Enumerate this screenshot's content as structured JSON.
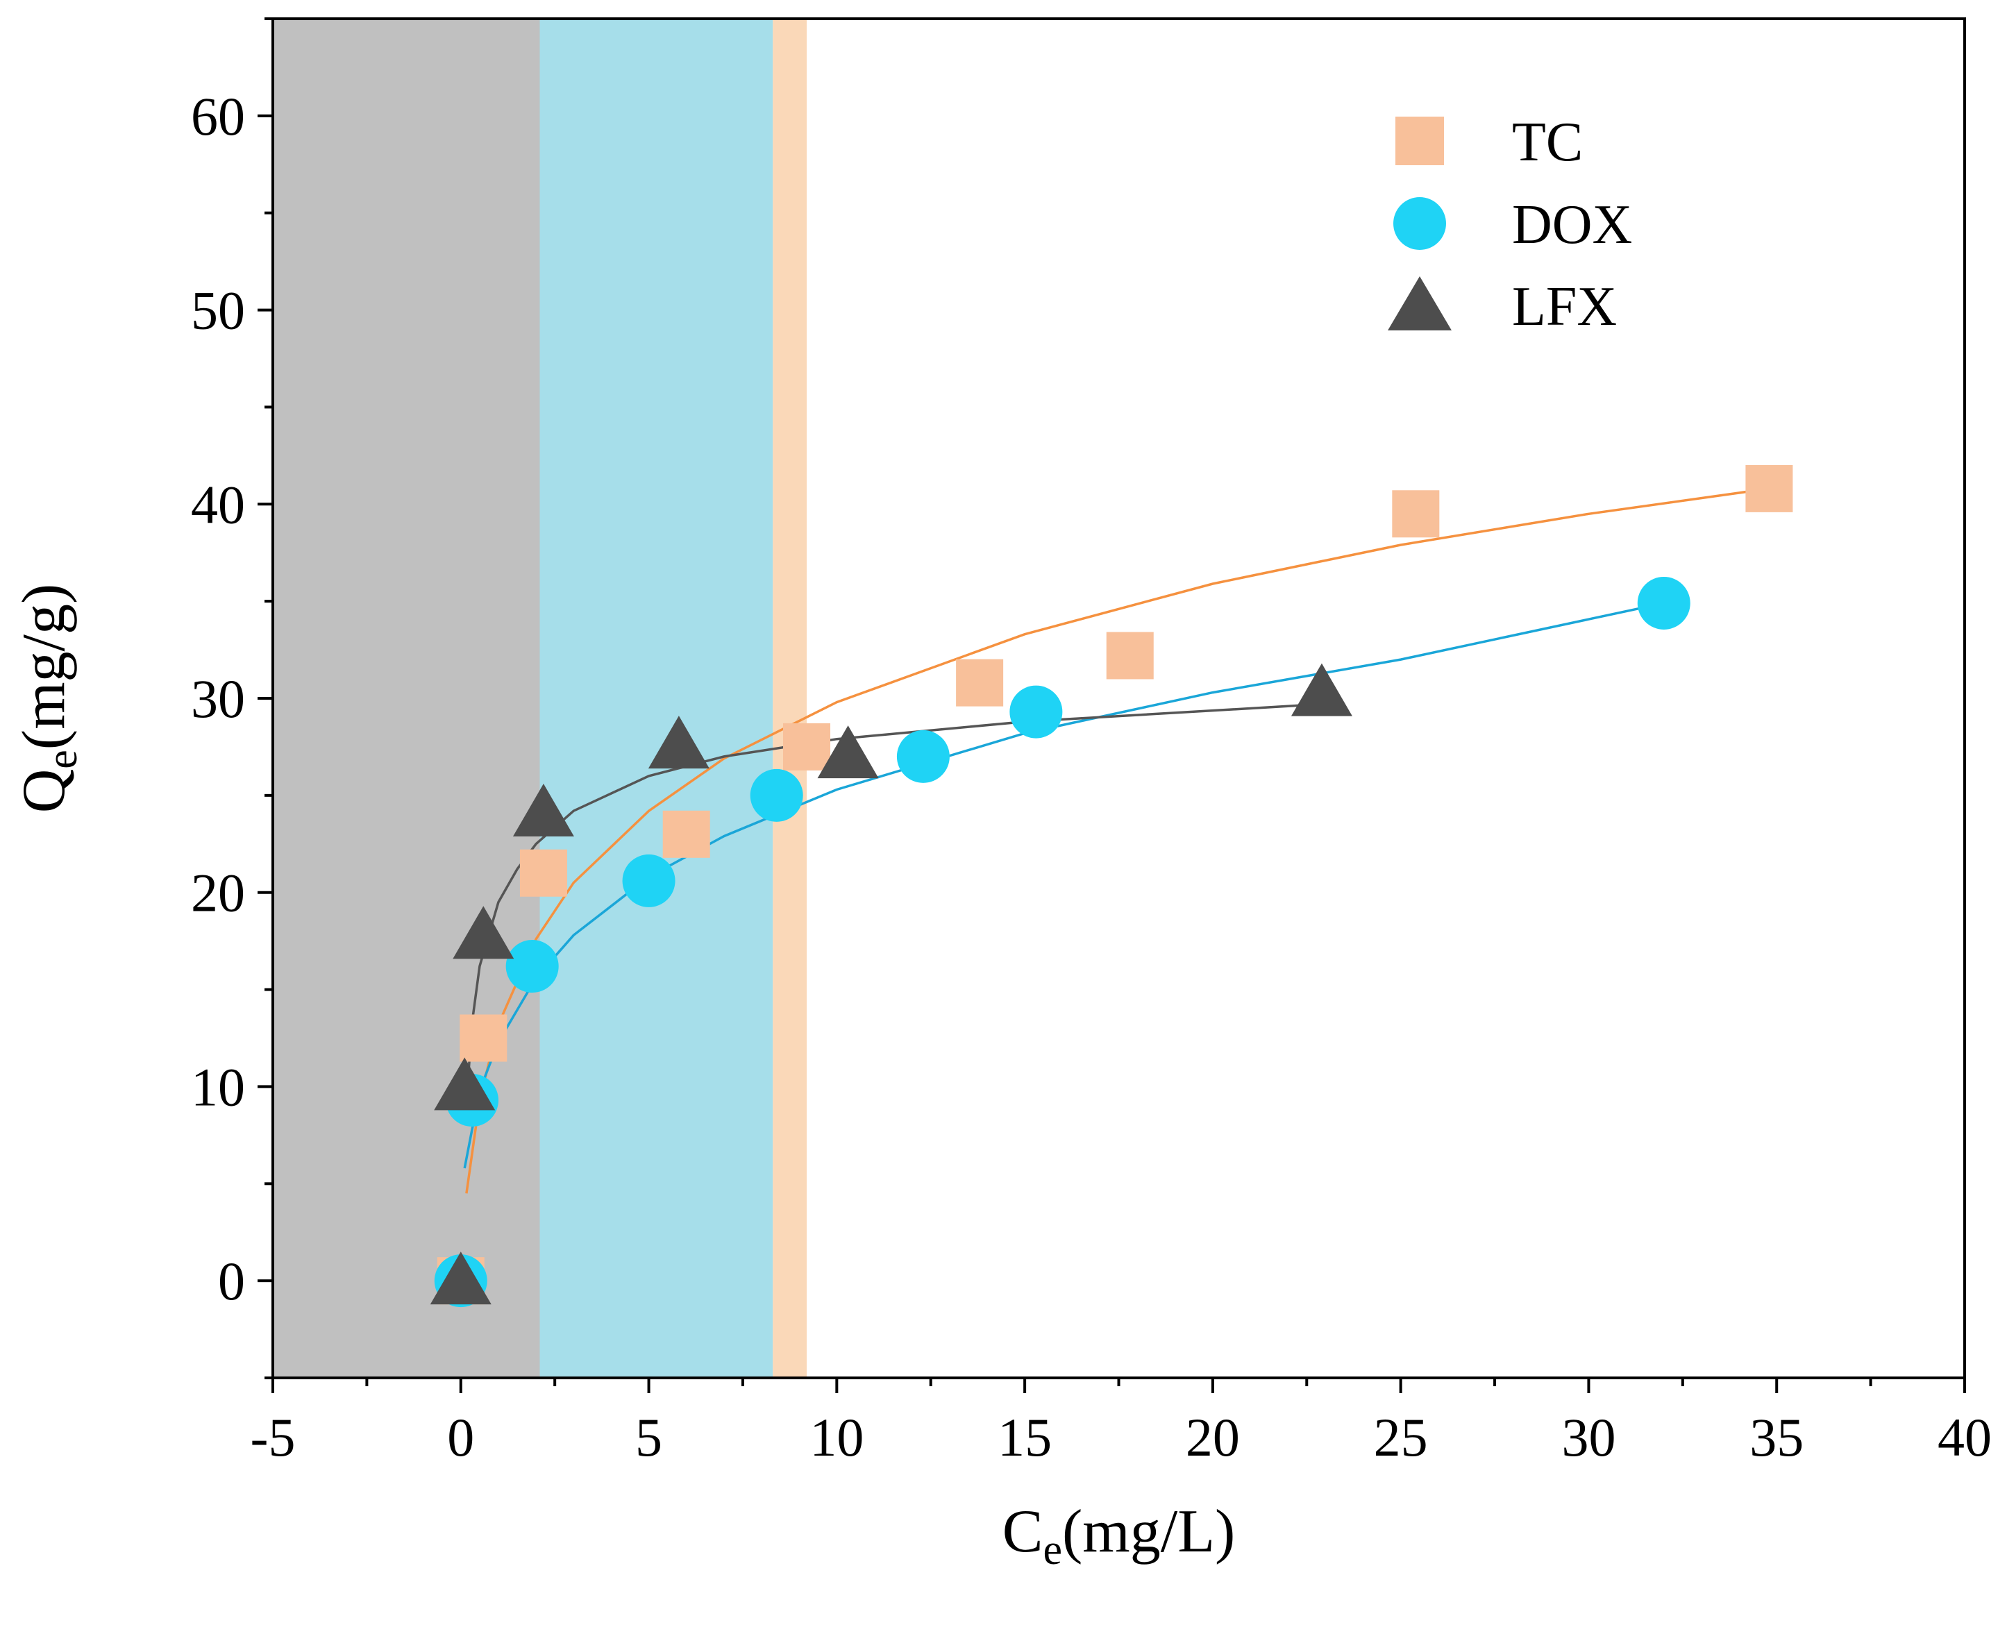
{
  "chart_data": {
    "type": "scatter",
    "title": "",
    "xlabel": {
      "main": "C",
      "sub": "e",
      "unit": "(mg/L)"
    },
    "ylabel": {
      "main": "Q",
      "sub": "e",
      "unit": "(mg/g)"
    },
    "xlim": [
      -5,
      40
    ],
    "ylim": [
      -5,
      65
    ],
    "x_ticks": [
      -5,
      0,
      5,
      10,
      15,
      20,
      25,
      30,
      35,
      40
    ],
    "x_tick_labels": [
      "-5",
      "0",
      "5",
      "10",
      "15",
      "20",
      "25",
      "30",
      "35",
      "40"
    ],
    "y_ticks": [
      0,
      10,
      20,
      30,
      40,
      50,
      60
    ],
    "y_tick_labels": [
      "0",
      "10",
      "20",
      "30",
      "40",
      "50",
      "60"
    ],
    "grid": false,
    "legend_position": "top-right",
    "shaded_regions": [
      {
        "x0": -5,
        "x1": 2.1,
        "color": "#c0c0c0"
      },
      {
        "x0": 2.1,
        "x1": 8.3,
        "color": "#a6deea"
      },
      {
        "x0": 8.3,
        "x1": 9.2,
        "color": "#fad8b8"
      }
    ],
    "series": [
      {
        "name": "TC",
        "marker": "square",
        "color": "#f8c09a",
        "fit_color": "#f5913f",
        "x": [
          0.0,
          0.6,
          2.2,
          6.0,
          9.2,
          13.8,
          17.8,
          25.4,
          34.8
        ],
        "y": [
          0.0,
          12.5,
          21.0,
          23.0,
          27.5,
          30.8,
          32.2,
          39.5,
          40.8
        ],
        "fit": [
          [
            0.15,
            4.5
          ],
          [
            0.5,
            9.3
          ],
          [
            1,
            13.2
          ],
          [
            2,
            17.6
          ],
          [
            3,
            20.5
          ],
          [
            5,
            24.2
          ],
          [
            7,
            26.9
          ],
          [
            10,
            29.8
          ],
          [
            15,
            33.3
          ],
          [
            20,
            35.9
          ],
          [
            25,
            37.9
          ],
          [
            30,
            39.5
          ],
          [
            34.8,
            40.8
          ]
        ]
      },
      {
        "name": "DOX",
        "marker": "circle",
        "color": "#1fd3f5",
        "fit_color": "#1aa6d8",
        "x": [
          0.0,
          0.3,
          1.9,
          5.0,
          8.4,
          12.3,
          15.3,
          32.0
        ],
        "y": [
          0.0,
          9.3,
          16.2,
          20.6,
          25.0,
          27.0,
          29.3,
          34.9
        ],
        "fit": [
          [
            0.1,
            5.8
          ],
          [
            0.5,
            9.8
          ],
          [
            1,
            12.3
          ],
          [
            2,
            15.6
          ],
          [
            3,
            17.8
          ],
          [
            5,
            20.8
          ],
          [
            7,
            22.9
          ],
          [
            10,
            25.3
          ],
          [
            15,
            28.2
          ],
          [
            20,
            30.3
          ],
          [
            25,
            32.0
          ],
          [
            32,
            34.9
          ]
        ]
      },
      {
        "name": "LFX",
        "marker": "triangle",
        "color": "#4d4d4d",
        "fit_color": "#555555",
        "x": [
          0.0,
          0.1,
          0.6,
          2.2,
          5.8,
          10.3,
          22.9
        ],
        "y": [
          0.0,
          10.0,
          17.8,
          24.1,
          27.6,
          27.1,
          30.3
        ],
        "fit": [
          [
            0.15,
            9.2
          ],
          [
            0.3,
            13.3
          ],
          [
            0.5,
            16.2
          ],
          [
            1,
            19.5
          ],
          [
            1.5,
            21.2
          ],
          [
            2,
            22.5
          ],
          [
            3,
            24.2
          ],
          [
            5,
            26.0
          ],
          [
            7,
            27.0
          ],
          [
            10,
            27.9
          ],
          [
            15,
            28.8
          ],
          [
            22.9,
            29.7
          ]
        ]
      }
    ]
  }
}
